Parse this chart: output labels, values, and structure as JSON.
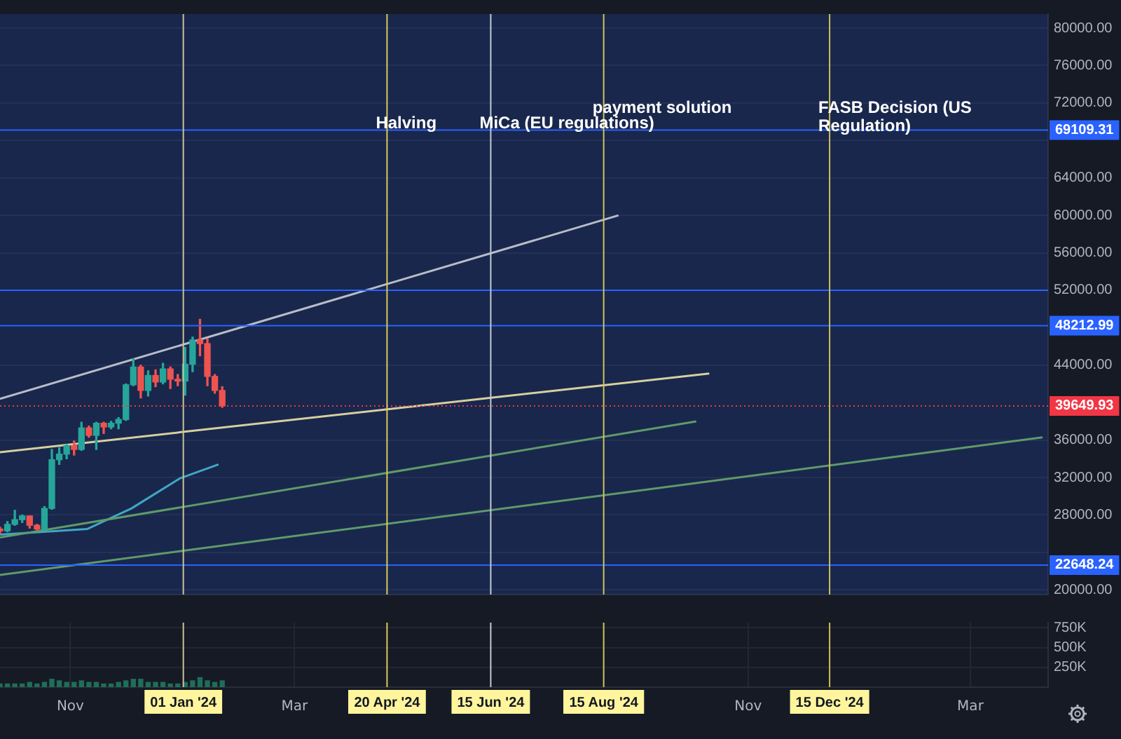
{
  "chart_data": [
    {
      "type": "candlestick",
      "tick_labels": "y",
      "grid": "y",
      "legend": false,
      "xlim": [
        "2023-09-24",
        "2025-04-12"
      ],
      "ylim": [
        19500,
        81500
      ],
      "yticks": [
        {
          "value": 20000,
          "label": "20000.00"
        },
        {
          "value": 24000,
          "label": null
        },
        {
          "value": 28000,
          "label": "28000.00"
        },
        {
          "value": 32000,
          "label": "32000.00"
        },
        {
          "value": 36000,
          "label": "36000.00"
        },
        {
          "value": 44000,
          "label": "44000.00"
        },
        {
          "value": 52000,
          "label": "52000.00"
        },
        {
          "value": 56000,
          "label": "56000.00"
        },
        {
          "value": 60000,
          "label": "60000.00"
        },
        {
          "value": 64000,
          "label": "64000.00"
        },
        {
          "value": 68000,
          "label": null
        },
        {
          "value": 72000,
          "label": "72000.00"
        },
        {
          "value": 76000,
          "label": "76000.00"
        },
        {
          "value": 80000,
          "label": "80000.00"
        }
      ],
      "x": [
        "2023-09-24",
        "2023-09-28",
        "2023-10-02",
        "2023-10-06",
        "2023-10-10",
        "2023-10-14",
        "2023-10-18",
        "2023-10-22",
        "2023-10-26",
        "2023-10-30",
        "2023-11-03",
        "2023-11-07",
        "2023-11-11",
        "2023-11-15",
        "2023-11-19",
        "2023-11-23",
        "2023-11-27",
        "2023-12-01",
        "2023-12-05",
        "2023-12-09",
        "2023-12-13",
        "2023-12-17",
        "2023-12-21",
        "2023-12-25",
        "2023-12-29",
        "2024-01-02",
        "2024-01-06",
        "2024-01-10",
        "2024-01-14",
        "2024-01-18",
        "2024-01-22"
      ],
      "ohlc": [
        [
          26500,
          26700,
          26000,
          26300
        ],
        [
          26300,
          27300,
          26200,
          27000
        ],
        [
          27000,
          28500,
          26900,
          27500
        ],
        [
          27500,
          28000,
          27200,
          27900
        ],
        [
          27900,
          27900,
          26600,
          26900
        ],
        [
          26900,
          27000,
          26400,
          26500
        ],
        [
          26500,
          28900,
          26400,
          28700
        ],
        [
          28700,
          35000,
          28600,
          33900
        ],
        [
          33900,
          35200,
          33400,
          34500
        ],
        [
          34500,
          35500,
          34000,
          35400
        ],
        [
          35400,
          35900,
          34400,
          35000
        ],
        [
          35000,
          37900,
          34900,
          37300
        ],
        [
          37300,
          37500,
          36300,
          36500
        ],
        [
          36500,
          37900,
          35000,
          37800
        ],
        [
          37800,
          37900,
          36700,
          37400
        ],
        [
          37400,
          38000,
          37200,
          37800
        ],
        [
          37800,
          38400,
          37200,
          38200
        ],
        [
          38200,
          42000,
          38100,
          41900
        ],
        [
          41900,
          44700,
          41800,
          43800
        ],
        [
          43800,
          44000,
          40500,
          41300
        ],
        [
          41300,
          43400,
          40700,
          42900
        ],
        [
          42900,
          43500,
          41700,
          42200
        ],
        [
          42200,
          44200,
          42000,
          43600
        ],
        [
          43600,
          43800,
          41500,
          42500
        ],
        [
          42500,
          43000,
          41800,
          42300
        ],
        [
          42300,
          45900,
          40800,
          44100
        ],
        [
          44100,
          47000,
          43300,
          46700
        ],
        [
          46700,
          48900,
          45000,
          46300
        ],
        [
          46300,
          46800,
          41800,
          42800
        ],
        [
          42800,
          43000,
          41000,
          41300
        ],
        [
          41300,
          41700,
          39500,
          39650
        ]
      ],
      "series": [
        {
          "type": "line",
          "color": "#b8bcc8",
          "x": [
            "2023-09-24",
            "2024-08-23"
          ],
          "values": [
            40400,
            60000
          ]
        },
        {
          "type": "line",
          "color": "#d6cfa0",
          "x": [
            "2023-09-24",
            "2024-10-11"
          ],
          "values": [
            34700,
            43100
          ]
        },
        {
          "type": "line",
          "color": "#5f9a6a",
          "x": [
            "2023-09-24",
            "2024-10-04"
          ],
          "values": [
            25600,
            38000
          ]
        },
        {
          "type": "line",
          "color": "#5f9a6a",
          "x": [
            "2023-09-24",
            "2025-04-09"
          ],
          "values": [
            21600,
            36300
          ]
        },
        {
          "type": "line",
          "color": "#3fa7c4",
          "x": [
            "2023-09-24",
            "2023-11-10",
            "2023-12-04",
            "2023-12-30",
            "2024-01-20"
          ],
          "values": [
            25900,
            26500,
            28700,
            31900,
            33400
          ]
        }
      ],
      "bands": [
        {
          "axis": "y",
          "from": 19500,
          "to": 52000,
          "color": "#2962ff"
        },
        {
          "axis": "y",
          "from": 52000,
          "to": 81500,
          "color": "#2962ff"
        }
      ],
      "ref_lines": [
        {
          "axis": "y",
          "value": 69109.31,
          "label": "69109.31",
          "color": "#2962ff"
        },
        {
          "axis": "y",
          "value": 52000,
          "color": "#2962ff"
        },
        {
          "axis": "y",
          "value": 48212.99,
          "label": "48212.99",
          "color": "#2962ff"
        },
        {
          "axis": "y",
          "value": 39649.93,
          "label": "39649.93",
          "color": "#f23645",
          "line_style": "dotted"
        },
        {
          "axis": "y",
          "value": 22648.24,
          "label": "22648.24",
          "color": "#2962ff"
        },
        {
          "axis": "x",
          "value": "2024-01-01",
          "color": "#c9c39a"
        },
        {
          "axis": "x",
          "value": "2024-04-20",
          "color": "#d9c95c"
        },
        {
          "axis": "x",
          "value": "2024-06-15",
          "color": "#c3cad8"
        },
        {
          "axis": "x",
          "value": "2024-08-15",
          "color": "#d0c45c"
        },
        {
          "axis": "x",
          "value": "2024-12-15",
          "color": "#d0c05a"
        }
      ],
      "annotations": [
        "Halving",
        "MiCa (EU regulations)",
        "payment solution",
        "FASB Decision (US Regulation)"
      ]
    },
    {
      "type": "bar",
      "tick_labels": "xy",
      "grid": true,
      "legend": false,
      "color": "#1f6e5a",
      "xlim": [
        "2023-09-24",
        "2025-04-12"
      ],
      "ylim": [
        0,
        816000
      ],
      "yticks": [
        {
          "value": 250000,
          "label": "250K"
        },
        {
          "value": 500000,
          "label": "500K"
        },
        {
          "value": 750000,
          "label": "750K"
        }
      ],
      "xticks": [
        {
          "value": "2023-11-01",
          "label": "Nov"
        },
        {
          "value": "2024-03-01",
          "label": "Mar"
        },
        {
          "value": "2024-11-01",
          "label": "Nov"
        },
        {
          "value": "2025-03-01",
          "label": "Mar"
        }
      ],
      "x": [
        "2023-09-24",
        "2023-09-28",
        "2023-10-02",
        "2023-10-06",
        "2023-10-10",
        "2023-10-14",
        "2023-10-18",
        "2023-10-22",
        "2023-10-26",
        "2023-10-30",
        "2023-11-03",
        "2023-11-07",
        "2023-11-11",
        "2023-11-15",
        "2023-11-19",
        "2023-11-23",
        "2023-11-27",
        "2023-12-01",
        "2023-12-05",
        "2023-12-09",
        "2023-12-13",
        "2023-12-17",
        "2023-12-21",
        "2023-12-25",
        "2023-12-29",
        "2024-01-02",
        "2024-01-06",
        "2024-01-10",
        "2024-01-14",
        "2024-01-18",
        "2024-01-22"
      ],
      "values": [
        40000,
        40000,
        40000,
        40000,
        60000,
        40000,
        60000,
        100000,
        80000,
        60000,
        60000,
        80000,
        60000,
        60000,
        40000,
        40000,
        60000,
        80000,
        100000,
        100000,
        60000,
        60000,
        60000,
        40000,
        40000,
        60000,
        80000,
        120000,
        80000,
        60000,
        80000
      ],
      "ref_lines": [
        {
          "axis": "x",
          "value": "2024-01-01",
          "label": "01 Jan '24",
          "color": "#c9c39a"
        },
        {
          "axis": "x",
          "value": "2024-04-20",
          "label": "20 Apr '24",
          "color": "#d9c95c"
        },
        {
          "axis": "x",
          "value": "2024-06-15",
          "label": "15 Jun '24",
          "color": "#c3cad8"
        },
        {
          "axis": "x",
          "value": "2024-08-15",
          "label": "15 Aug '24",
          "color": "#d0c45c"
        },
        {
          "axis": "x",
          "value": "2024-12-15",
          "label": "15 Dec '24",
          "color": "#d0c05a"
        }
      ]
    }
  ]
}
